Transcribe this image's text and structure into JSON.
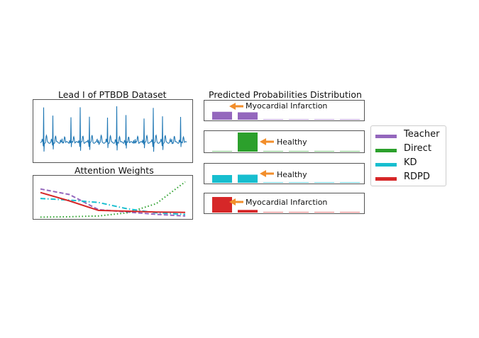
{
  "ecg_panel": {
    "title": "Lead I of PTBDB Dataset"
  },
  "attention_panel": {
    "title": "Attention Weights"
  },
  "prob_panel": {
    "title": "Predicted Probabilities Distribution",
    "rows": [
      {
        "model": "Teacher",
        "annotation": "Myocardial Infarction"
      },
      {
        "model": "Direct",
        "annotation": "Healthy"
      },
      {
        "model": "KD",
        "annotation": "Healthy"
      },
      {
        "model": "RDPD",
        "annotation": "Myocardial Infarction"
      }
    ]
  },
  "legend": [
    {
      "label": "Teacher",
      "color": "#9467bd"
    },
    {
      "label": "Direct",
      "color": "#2ca02c"
    },
    {
      "label": "KD",
      "color": "#17becf"
    },
    {
      "label": "RDPD",
      "color": "#d62728"
    }
  ],
  "arrow_color": "#f28e2b",
  "chart_data": [
    {
      "type": "line",
      "title": "Lead I of PTBDB Dataset",
      "description_series": "ECG signal, 16 beats",
      "beats": 16,
      "color": "#1f77b4",
      "axes_visible": false
    },
    {
      "type": "line",
      "title": "Attention Weights",
      "x": [
        0,
        1,
        2,
        3,
        4,
        5
      ],
      "ylim": [
        0,
        1
      ],
      "axes_visible": false,
      "series": [
        {
          "name": "Teacher",
          "color": "#9467bd",
          "style": "dashed",
          "values": [
            0.72,
            0.58,
            0.2,
            0.14,
            0.08,
            0.04
          ]
        },
        {
          "name": "Direct",
          "color": "#2ca02c",
          "style": "dotted",
          "values": [
            0.01,
            0.02,
            0.04,
            0.12,
            0.35,
            0.9
          ]
        },
        {
          "name": "KD",
          "color": "#17becf",
          "style": "dashdot",
          "values": [
            0.48,
            0.44,
            0.38,
            0.22,
            0.12,
            0.08
          ]
        },
        {
          "name": "RDPD",
          "color": "#d62728",
          "style": "solid",
          "values": [
            0.63,
            0.42,
            0.18,
            0.16,
            0.14,
            0.13
          ]
        }
      ]
    },
    {
      "type": "bar",
      "title": "Predicted Probabilities Distribution",
      "classes": 8,
      "ylim": [
        0,
        1
      ],
      "series": [
        {
          "name": "Teacher",
          "color": "#9467bd",
          "values": [
            0.45,
            0.42,
            0.01,
            0.01,
            0.01,
            0.01,
            0.01,
            0.01
          ]
        },
        {
          "name": "Direct",
          "color": "#2ca02c",
          "values": [
            0.01,
            1.0,
            0.01,
            0.01,
            0.01,
            0.01,
            0.01,
            0.01
          ]
        },
        {
          "name": "KD",
          "color": "#17becf",
          "values": [
            0.44,
            0.46,
            0.01,
            0.01,
            0.01,
            0.01,
            0.01,
            0.01
          ]
        },
        {
          "name": "RDPD",
          "color": "#d62728",
          "values": [
            0.88,
            0.15,
            0.01,
            0.01,
            0.01,
            0.01,
            0.01,
            0.01
          ]
        }
      ]
    }
  ]
}
